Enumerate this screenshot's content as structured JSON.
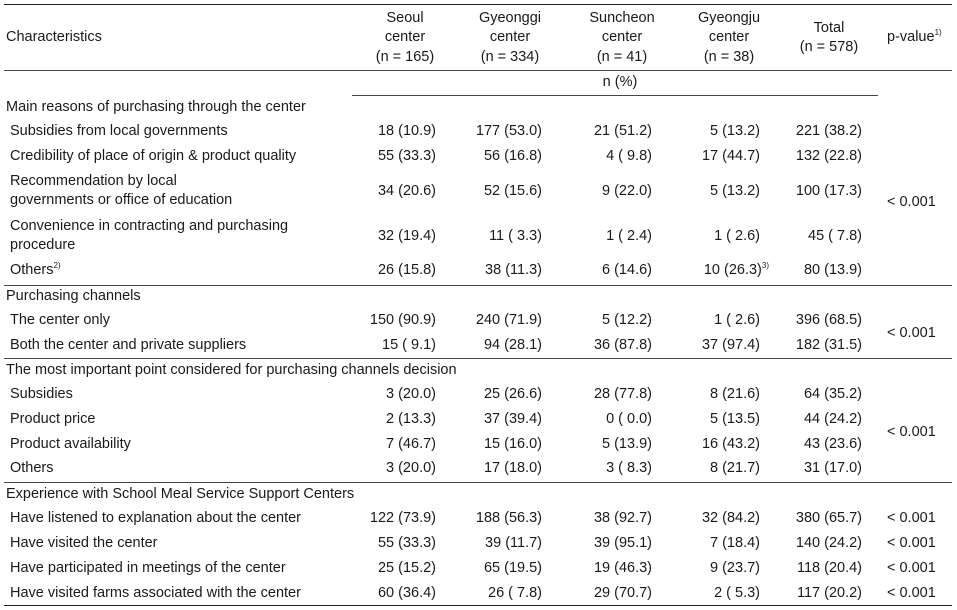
{
  "header": {
    "characteristics": "Characteristics",
    "seoul": [
      "Seoul",
      "center",
      "(n = 165)"
    ],
    "gyeonggi": [
      "Gyeonggi",
      "center",
      "(n = 334)"
    ],
    "suncheon": [
      "Suncheon",
      "center",
      "(n = 41)"
    ],
    "gyeongju": [
      "Gyeongju",
      "center",
      "(n = 38)"
    ],
    "total": [
      "Total",
      "(n = 578)"
    ],
    "pvalue": "p-value",
    "pvalue_note": "1)",
    "unit": "n (%)"
  },
  "sections": [
    {
      "title": "Main reasons of purchasing through the center",
      "pvalue": "< 0.001",
      "rows": [
        {
          "label": [
            "Subsidies from local governments"
          ],
          "values": [
            "18 (10.9)",
            "177 (53.0)",
            "21 (51.2)",
            "5 (13.2)",
            "221 (38.2)"
          ]
        },
        {
          "label": [
            "Credibility of place of origin & product quality"
          ],
          "values": [
            "55 (33.3)",
            "56 (16.8)",
            "4 ( 9.8)",
            "17 (44.7)",
            "132 (22.8)"
          ]
        },
        {
          "label": [
            "Recommendation by local",
            "governments or office of education"
          ],
          "values": [
            "34 (20.6)",
            "52 (15.6)",
            "9 (22.0)",
            "5 (13.2)",
            "100 (17.3)"
          ]
        },
        {
          "label": [
            "Convenience in contracting and purchasing",
            "procedure"
          ],
          "values": [
            "32 (19.4)",
            "11 ( 3.3)",
            "1 ( 2.4)",
            "1 ( 2.6)",
            "45 ( 7.8)"
          ]
        },
        {
          "label": [
            "Others"
          ],
          "label_note": "2)",
          "values": [
            "26 (15.8)",
            "38 (11.3)",
            "6 (14.6)",
            "10 (26.3)",
            "80 (13.9)"
          ],
          "value_note": "3)"
        }
      ]
    },
    {
      "title": "Purchasing channels",
      "pvalue": "< 0.001",
      "rows": [
        {
          "label": [
            "The center only"
          ],
          "values": [
            "150 (90.9)",
            "240 (71.9)",
            "5 (12.2)",
            "1 ( 2.6)",
            "396 (68.5)"
          ]
        },
        {
          "label": [
            "Both the center and private suppliers"
          ],
          "values": [
            "15 ( 9.1)",
            "94 (28.1)",
            "36 (87.8)",
            "37 (97.4)",
            "182 (31.5)"
          ]
        }
      ]
    },
    {
      "title": "The most important point considered for purchasing channels decision",
      "pvalue": "< 0.001",
      "rows": [
        {
          "label": [
            "Subsidies"
          ],
          "values": [
            "3 (20.0)",
            "25 (26.6)",
            "28 (77.8)",
            "8 (21.6)",
            "64 (35.2)"
          ]
        },
        {
          "label": [
            "Product price"
          ],
          "values": [
            "2 (13.3)",
            "37 (39.4)",
            "0 ( 0.0)",
            "5 (13.5)",
            "44 (24.2)"
          ]
        },
        {
          "label": [
            "Product availability"
          ],
          "values": [
            "7 (46.7)",
            "15 (16.0)",
            "5 (13.9)",
            "16 (43.2)",
            "43 (23.6)"
          ]
        },
        {
          "label": [
            "Others"
          ],
          "values": [
            "3 (20.0)",
            "17 (18.0)",
            "3 ( 8.3)",
            "8 (21.7)",
            "31 (17.0)"
          ]
        }
      ]
    },
    {
      "title": "Experience with School Meal Service Support Centers",
      "rows": [
        {
          "label": [
            "Have listened to explanation about the center"
          ],
          "values": [
            "122 (73.9)",
            "188 (56.3)",
            "38 (92.7)",
            "32 (84.2)",
            "380 (65.7)"
          ],
          "pvalue": "< 0.001"
        },
        {
          "label": [
            "Have visited the center"
          ],
          "values": [
            "55 (33.3)",
            "39 (11.7)",
            "39 (95.1)",
            "7 (18.4)",
            "140 (24.2)"
          ],
          "pvalue": "< 0.001"
        },
        {
          "label": [
            "Have participated in meetings of the center"
          ],
          "values": [
            "25 (15.2)",
            "65 (19.5)",
            "19 (46.3)",
            "9 (23.7)",
            "118 (20.4)"
          ],
          "pvalue": "< 0.001"
        },
        {
          "label": [
            "Have visited farms associated with the center"
          ],
          "values": [
            "60 (36.4)",
            "26 ( 7.8)",
            "29 (70.7)",
            "2 ( 5.3)",
            "117 (20.2)"
          ],
          "pvalue": "< 0.001"
        }
      ]
    }
  ]
}
